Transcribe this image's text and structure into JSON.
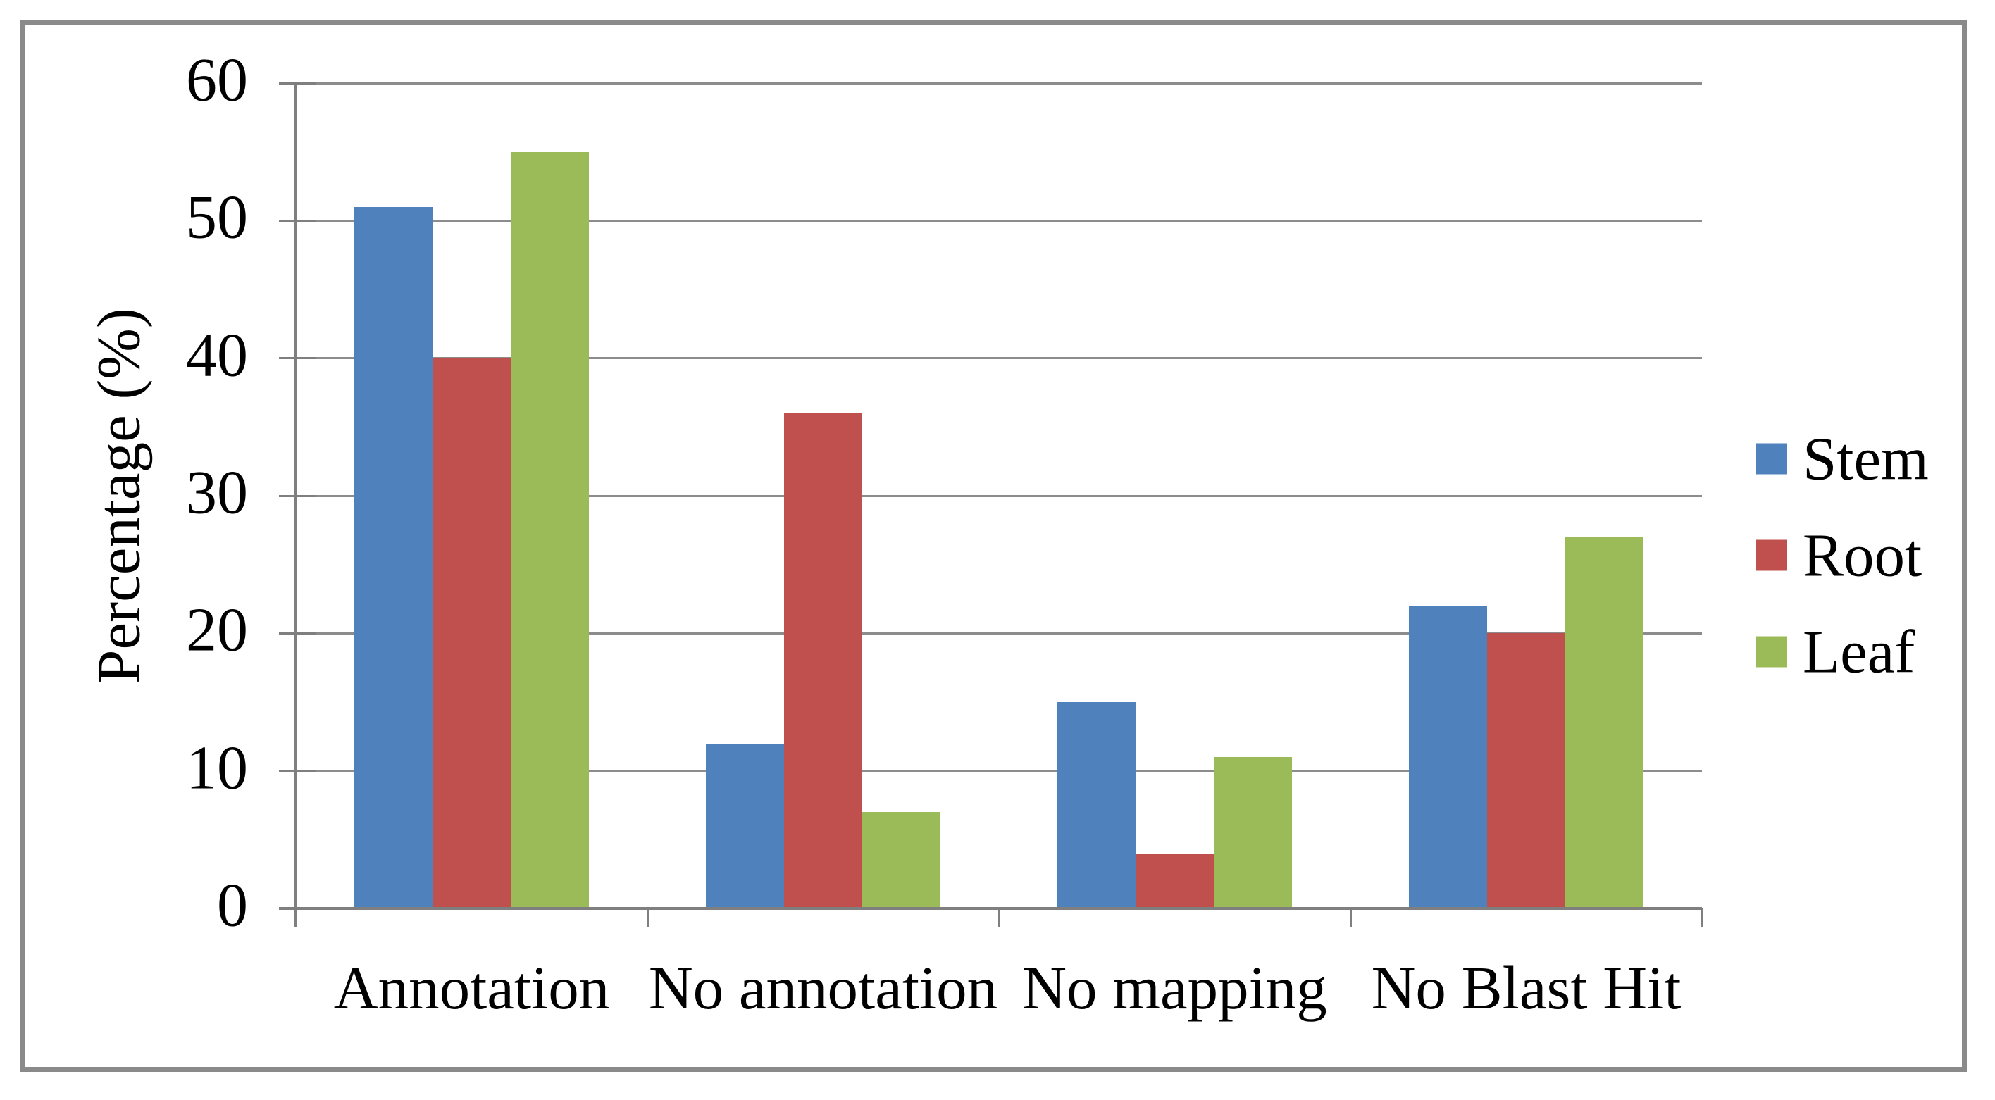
{
  "chart_data": {
    "type": "bar",
    "title": "",
    "categories": [
      "Annotation",
      "No annotation",
      "No mapping",
      "No Blast Hit"
    ],
    "series": [
      {
        "name": "Stem",
        "color": "#4F81BD",
        "values": [
          51,
          12,
          15,
          22
        ]
      },
      {
        "name": "Root",
        "color": "#C0504D",
        "values": [
          40,
          36,
          4,
          20
        ]
      },
      {
        "name": "Leaf",
        "color": "#9BBB59",
        "values": [
          55,
          7,
          11,
          27
        ]
      }
    ],
    "xlabel": "",
    "ylabel": "Percentage (%)",
    "ylim": [
      0,
      60
    ],
    "ytick_step": 10,
    "yticks": [
      0,
      10,
      20,
      30,
      40,
      50,
      60
    ],
    "grid": true,
    "legend_position": "right",
    "gap_width_percent": 150
  },
  "colors": {
    "gridline": "#8C8C8C",
    "axis": "#7F7F7F",
    "frame_border": "#8A8A8A",
    "background": "#FFFFFF",
    "text": "#000000"
  }
}
